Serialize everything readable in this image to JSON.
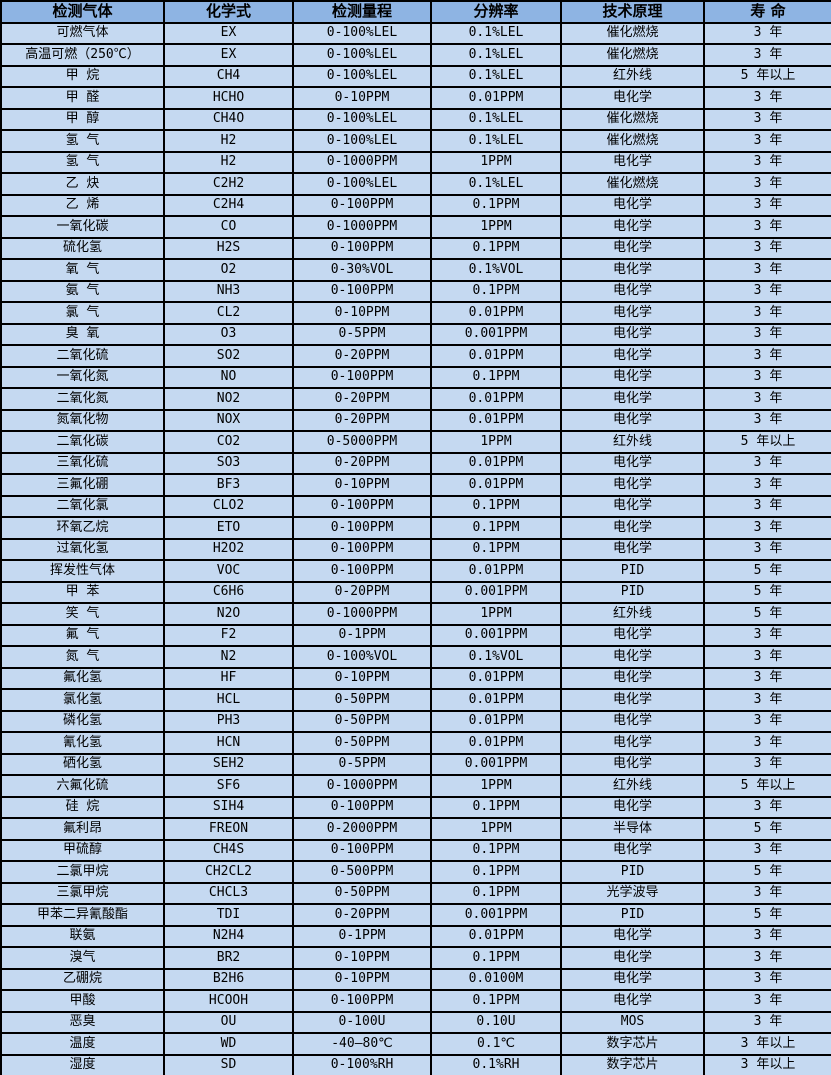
{
  "colors": {
    "header_bg": "#8EB4E3",
    "row_bg": "#C5D9F1",
    "border": "#000000",
    "text": "#000000"
  },
  "table": {
    "headers": [
      "检测气体",
      "化学式",
      "检测量程",
      "分辨率",
      "技术原理",
      "寿 命"
    ],
    "rows": [
      [
        "可燃气体",
        "EX",
        "0-100%LEL",
        "0.1%LEL",
        "催化燃烧",
        "3 年"
      ],
      [
        "高温可燃（250℃）",
        "EX",
        "0-100%LEL",
        "0.1%LEL",
        "催化燃烧",
        "3 年"
      ],
      [
        "甲 烷",
        "CH4",
        "0-100%LEL",
        "0.1%LEL",
        "红外线",
        "5 年以上"
      ],
      [
        "甲 醛",
        "HCHO",
        "0-10PPM",
        "0.01PPM",
        "电化学",
        "3 年"
      ],
      [
        "甲 醇",
        "CH4O",
        "0-100%LEL",
        "0.1%LEL",
        "催化燃烧",
        "3 年"
      ],
      [
        "氢 气",
        "H2",
        "0-100%LEL",
        "0.1%LEL",
        "催化燃烧",
        "3 年"
      ],
      [
        "氢 气",
        "H2",
        "0-1000PPM",
        "1PPM",
        "电化学",
        "3 年"
      ],
      [
        "乙 炔",
        "C2H2",
        "0-100%LEL",
        "0.1%LEL",
        "催化燃烧",
        "3 年"
      ],
      [
        "乙 烯",
        "C2H4",
        "0-100PPM",
        "0.1PPM",
        "电化学",
        "3 年"
      ],
      [
        "一氧化碳",
        "CO",
        "0-1000PPM",
        "1PPM",
        "电化学",
        "3 年"
      ],
      [
        "硫化氢",
        "H2S",
        "0-100PPM",
        "0.1PPM",
        "电化学",
        "3 年"
      ],
      [
        "氧 气",
        "O2",
        "0-30%VOL",
        "0.1%VOL",
        "电化学",
        "3 年"
      ],
      [
        "氨 气",
        "NH3",
        "0-100PPM",
        "0.1PPM",
        "电化学",
        "3 年"
      ],
      [
        "氯 气",
        "CL2",
        "0-10PPM",
        "0.01PPM",
        "电化学",
        "3 年"
      ],
      [
        "臭 氧",
        "O3",
        "0-5PPM",
        "0.001PPM",
        "电化学",
        "3 年"
      ],
      [
        "二氧化硫",
        "SO2",
        "0-20PPM",
        "0.01PPM",
        "电化学",
        "3 年"
      ],
      [
        "一氧化氮",
        "NO",
        "0-100PPM",
        "0.1PPM",
        "电化学",
        "3 年"
      ],
      [
        "二氧化氮",
        "NO2",
        "0-20PPM",
        "0.01PPM",
        "电化学",
        "3 年"
      ],
      [
        "氮氧化物",
        "NOX",
        "0-20PPM",
        "0.01PPM",
        "电化学",
        "3 年"
      ],
      [
        "二氧化碳",
        "CO2",
        "0-5000PPM",
        "1PPM",
        "红外线",
        "5 年以上"
      ],
      [
        "三氧化硫",
        "SO3",
        "0-20PPM",
        "0.01PPM",
        "电化学",
        "3 年"
      ],
      [
        "三氟化硼",
        "BF3",
        "0-10PPM",
        "0.01PPM",
        "电化学",
        "3 年"
      ],
      [
        "二氧化氯",
        "CLO2",
        "0-100PPM",
        "0.1PPM",
        "电化学",
        "3 年"
      ],
      [
        "环氧乙烷",
        "ETO",
        "0-100PPM",
        "0.1PPM",
        "电化学",
        "3 年"
      ],
      [
        "过氧化氢",
        "H2O2",
        "0-100PPM",
        "0.1PPM",
        "电化学",
        "3 年"
      ],
      [
        "挥发性气体",
        "VOC",
        "0-100PPM",
        "0.01PPM",
        "PID",
        "5 年"
      ],
      [
        "甲 苯",
        "C6H6",
        "0-20PPM",
        "0.001PPM",
        "PID",
        "5 年"
      ],
      [
        "笑 气",
        "N2O",
        "0-1000PPM",
        "1PPM",
        "红外线",
        "5 年"
      ],
      [
        "氟 气",
        "F2",
        "0-1PPM",
        "0.001PPM",
        "电化学",
        "3 年"
      ],
      [
        "氮 气",
        "N2",
        "0-100%VOL",
        "0.1%VOL",
        "电化学",
        "3 年"
      ],
      [
        "氟化氢",
        "HF",
        "0-10PPM",
        "0.01PPM",
        "电化学",
        "3 年"
      ],
      [
        "氯化氢",
        "HCL",
        "0-50PPM",
        "0.01PPM",
        "电化学",
        "3 年"
      ],
      [
        "磷化氢",
        "PH3",
        "0-50PPM",
        "0.01PPM",
        "电化学",
        "3 年"
      ],
      [
        "氰化氢",
        "HCN",
        "0-50PPM",
        "0.01PPM",
        "电化学",
        "3 年"
      ],
      [
        "硒化氢",
        "SEH2",
        "0-5PPM",
        "0.001PPM",
        "电化学",
        "3 年"
      ],
      [
        "六氟化硫",
        "SF6",
        "0-1000PPM",
        "1PPM",
        "红外线",
        "5 年以上"
      ],
      [
        "硅 烷",
        "SIH4",
        "0-100PPM",
        "0.1PPM",
        "电化学",
        "3 年"
      ],
      [
        "氟利昂",
        "FREON",
        "0-2000PPM",
        "1PPM",
        "半导体",
        "5 年"
      ],
      [
        "甲硫醇",
        "CH4S",
        "0-100PPM",
        "0.1PPM",
        "电化学",
        "3 年"
      ],
      [
        "二氯甲烷",
        "CH2CL2",
        "0-500PPM",
        "0.1PPM",
        "PID",
        "5 年"
      ],
      [
        "三氯甲烷",
        "CHCL3",
        "0-50PPM",
        "0.1PPM",
        "光学波导",
        "3 年"
      ],
      [
        "甲苯二异氰酸酯",
        "TDI",
        "0-20PPM",
        "0.001PPM",
        "PID",
        "5 年"
      ],
      [
        "联氨",
        "N2H4",
        "0-1PPM",
        "0.01PPM",
        "电化学",
        "3 年"
      ],
      [
        "溴气",
        "BR2",
        "0-10PPM",
        "0.1PPM",
        "电化学",
        "3 年"
      ],
      [
        "乙硼烷",
        "B2H6",
        "0-10PPM",
        "0.0100M",
        "电化学",
        "3 年"
      ],
      [
        "甲酸",
        "HCOOH",
        "0-100PPM",
        "0.1PPM",
        "电化学",
        "3 年"
      ],
      [
        "恶臭",
        "OU",
        "0-100U",
        "0.10U",
        "MOS",
        "3 年"
      ],
      [
        "温度",
        "WD",
        "-40—80℃",
        "0.1℃",
        "数字芯片",
        "3 年以上"
      ],
      [
        "湿度",
        "SD",
        "0-100%RH",
        "0.1%RH",
        "数字芯片",
        "3 年以上"
      ]
    ]
  }
}
